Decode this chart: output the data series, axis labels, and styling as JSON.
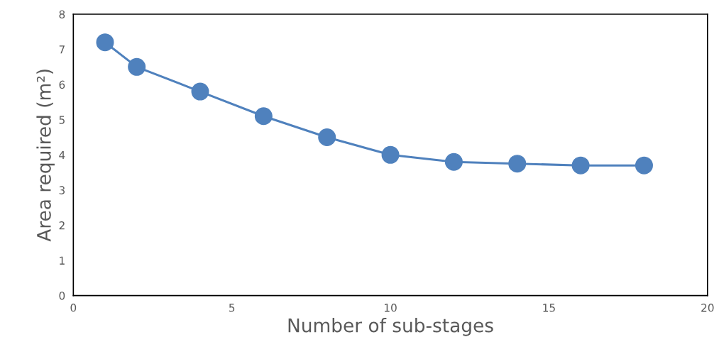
{
  "chart_data": {
    "type": "line",
    "xlabel": "Number of sub-stages",
    "ylabel": "Area required (m²)",
    "x": [
      1,
      2,
      4,
      6,
      8,
      10,
      12,
      14,
      16,
      18
    ],
    "series": [
      {
        "color": "#4f81bd",
        "values": [
          7.2,
          6.5,
          5.8,
          5.1,
          4.5,
          4.0,
          3.8,
          3.75,
          3.7,
          3.7
        ]
      }
    ],
    "xlim": [
      0,
      20
    ],
    "xticks": [
      0,
      5,
      10,
      15,
      20
    ],
    "ylim": [
      0,
      8
    ],
    "yticks": [
      0,
      1,
      2,
      3,
      4,
      5,
      6,
      7,
      8
    ],
    "grid": false,
    "legend": false,
    "marker": "circle",
    "line_style": "solid"
  }
}
